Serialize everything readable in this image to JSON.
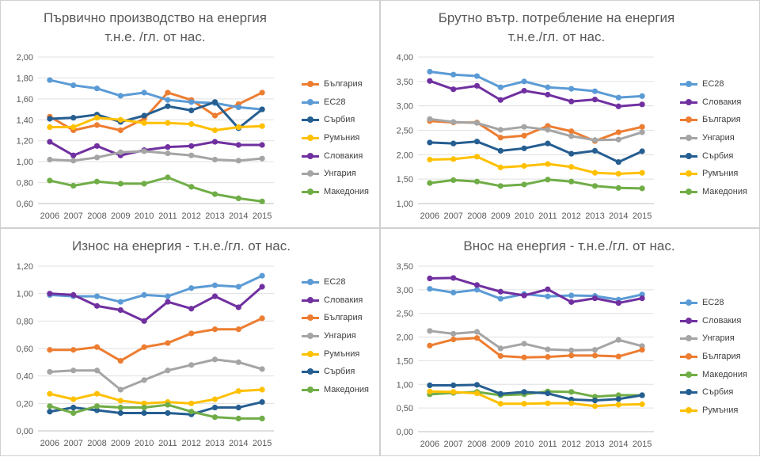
{
  "colors": {
    "EC28": "#5b9bd5",
    "Slovakia": "#7030a0",
    "Bulgaria": "#ed7d31",
    "Hungary": "#a5a5a5",
    "Romania": "#ffc000",
    "Serbia": "#255e91",
    "Macedonia": "#70ad47"
  },
  "chart_data": [
    {
      "type": "line",
      "title_line1": "Първично производство на енергия",
      "title_line2": "т.н.е. /гл. от нас.",
      "x": [
        "2006",
        "2007",
        "2008",
        "2009",
        "2010",
        "2011",
        "2012",
        "2013",
        "2014",
        "2015"
      ],
      "ylim": [
        0.6,
        2.0
      ],
      "yticks": [
        "0,60",
        "0,80",
        "1,00",
        "1,20",
        "1,40",
        "1,60",
        "1,80",
        "2,00"
      ],
      "grid": true,
      "legend_position": "right",
      "series": [
        {
          "name": "България",
          "color": "#ed7d31",
          "values": [
            1.43,
            1.3,
            1.35,
            1.3,
            1.41,
            1.66,
            1.59,
            1.44,
            1.55,
            1.66
          ]
        },
        {
          "name": "ЕС28",
          "color": "#5b9bd5",
          "values": [
            1.78,
            1.73,
            1.7,
            1.63,
            1.66,
            1.59,
            1.57,
            1.56,
            1.52,
            1.5
          ]
        },
        {
          "name": "Сърбия",
          "color": "#255e91",
          "values": [
            1.41,
            1.42,
            1.45,
            1.38,
            1.44,
            1.53,
            1.49,
            1.57,
            1.32,
            1.5
          ]
        },
        {
          "name": "Румъния",
          "color": "#ffc000",
          "values": [
            1.33,
            1.33,
            1.42,
            1.4,
            1.37,
            1.37,
            1.36,
            1.3,
            1.33,
            1.34
          ]
        },
        {
          "name": "Словакия",
          "color": "#7030a0",
          "values": [
            1.19,
            1.06,
            1.15,
            1.06,
            1.11,
            1.14,
            1.15,
            1.19,
            1.16,
            1.16
          ]
        },
        {
          "name": "Унгария",
          "color": "#a5a5a5",
          "values": [
            1.02,
            1.01,
            1.04,
            1.09,
            1.1,
            1.08,
            1.06,
            1.02,
            1.01,
            1.03
          ]
        },
        {
          "name": "Македония",
          "color": "#70ad47",
          "values": [
            0.82,
            0.77,
            0.81,
            0.79,
            0.79,
            0.85,
            0.76,
            0.69,
            0.65,
            0.62
          ]
        }
      ]
    },
    {
      "type": "line",
      "title_line1": "Брутно вътр. потребление на енергия",
      "title_line2": "т.н.е./гл. от нас.",
      "x": [
        "2006",
        "2007",
        "2008",
        "2009",
        "2010",
        "2011",
        "2012",
        "2013",
        "2014",
        "2015"
      ],
      "ylim": [
        1.0,
        4.0
      ],
      "yticks": [
        "1,00",
        "1,50",
        "2,00",
        "2,50",
        "3,00",
        "3,50",
        "4,00"
      ],
      "grid": true,
      "legend_position": "right",
      "series": [
        {
          "name": "ЕС28",
          "color": "#5b9bd5",
          "values": [
            3.7,
            3.64,
            3.61,
            3.38,
            3.5,
            3.38,
            3.35,
            3.3,
            3.17,
            3.2
          ]
        },
        {
          "name": "Словакия",
          "color": "#7030a0",
          "values": [
            3.51,
            3.34,
            3.41,
            3.12,
            3.31,
            3.23,
            3.09,
            3.13,
            2.99,
            3.03
          ]
        },
        {
          "name": "България",
          "color": "#ed7d31",
          "values": [
            2.69,
            2.66,
            2.66,
            2.35,
            2.39,
            2.59,
            2.48,
            2.28,
            2.46,
            2.57
          ]
        },
        {
          "name": "Унгария",
          "color": "#a5a5a5",
          "values": [
            2.73,
            2.67,
            2.65,
            2.51,
            2.57,
            2.51,
            2.38,
            2.3,
            2.31,
            2.46
          ]
        },
        {
          "name": "Сърбия",
          "color": "#255e91",
          "values": [
            2.25,
            2.23,
            2.27,
            2.08,
            2.13,
            2.23,
            2.02,
            2.08,
            1.85,
            2.07
          ]
        },
        {
          "name": "Румъния",
          "color": "#ffc000",
          "values": [
            1.9,
            1.91,
            1.96,
            1.74,
            1.77,
            1.81,
            1.75,
            1.63,
            1.61,
            1.63
          ]
        },
        {
          "name": "Македония",
          "color": "#70ad47",
          "values": [
            1.42,
            1.48,
            1.45,
            1.36,
            1.39,
            1.49,
            1.45,
            1.36,
            1.32,
            1.31
          ]
        }
      ]
    },
    {
      "type": "line",
      "title_line1": "Износ на енергия - т.н.е./гл. от нас.",
      "title_line2": "",
      "x": [
        "2006",
        "2007",
        "2008",
        "2009",
        "2010",
        "2011",
        "2012",
        "2013",
        "2014",
        "2015"
      ],
      "ylim": [
        0.0,
        1.2
      ],
      "yticks": [
        "0,00",
        "0,20",
        "0,40",
        "0,60",
        "0,80",
        "1,00",
        "1,20"
      ],
      "grid": true,
      "legend_position": "right",
      "series": [
        {
          "name": "ЕС28",
          "color": "#5b9bd5",
          "values": [
            0.99,
            0.98,
            0.98,
            0.94,
            0.99,
            0.98,
            1.04,
            1.06,
            1.05,
            1.13
          ]
        },
        {
          "name": "Словакия",
          "color": "#7030a0",
          "values": [
            1.0,
            0.99,
            0.91,
            0.88,
            0.8,
            0.94,
            0.89,
            0.98,
            0.9,
            1.05
          ]
        },
        {
          "name": "България",
          "color": "#ed7d31",
          "values": [
            0.59,
            0.59,
            0.61,
            0.51,
            0.61,
            0.64,
            0.71,
            0.74,
            0.74,
            0.82
          ]
        },
        {
          "name": "Унгария",
          "color": "#a5a5a5",
          "values": [
            0.43,
            0.44,
            0.44,
            0.3,
            0.37,
            0.44,
            0.48,
            0.52,
            0.5,
            0.45
          ]
        },
        {
          "name": "Румъния",
          "color": "#ffc000",
          "values": [
            0.27,
            0.23,
            0.27,
            0.22,
            0.2,
            0.21,
            0.2,
            0.23,
            0.29,
            0.3
          ]
        },
        {
          "name": "Сърбия",
          "color": "#255e91",
          "values": [
            0.14,
            0.17,
            0.15,
            0.13,
            0.13,
            0.13,
            0.12,
            0.17,
            0.17,
            0.21
          ]
        },
        {
          "name": "Македония",
          "color": "#70ad47",
          "values": [
            0.18,
            0.13,
            0.18,
            0.17,
            0.17,
            0.19,
            0.14,
            0.1,
            0.09,
            0.09
          ]
        }
      ]
    },
    {
      "type": "line",
      "title_line1": "Внос на енергия - т.н.е./гл. от нас.",
      "title_line2": "",
      "x": [
        "2006",
        "2007",
        "2008",
        "2009",
        "2010",
        "2011",
        "2012",
        "2013",
        "2014",
        "2015"
      ],
      "ylim": [
        0.0,
        3.5
      ],
      "yticks": [
        "0,00",
        "0,50",
        "1,00",
        "1,50",
        "2,00",
        "2,50",
        "3,00",
        "3,50"
      ],
      "grid": true,
      "legend_position": "right",
      "series": [
        {
          "name": "ЕС28",
          "color": "#5b9bd5",
          "values": [
            3.02,
            2.94,
            3.0,
            2.81,
            2.91,
            2.86,
            2.88,
            2.87,
            2.79,
            2.9
          ]
        },
        {
          "name": "Словакия",
          "color": "#7030a0",
          "values": [
            3.24,
            3.25,
            3.1,
            2.96,
            2.88,
            3.01,
            2.74,
            2.82,
            2.72,
            2.82
          ]
        },
        {
          "name": "Унгария",
          "color": "#a5a5a5",
          "values": [
            2.13,
            2.07,
            2.11,
            1.76,
            1.86,
            1.74,
            1.72,
            1.73,
            1.94,
            1.81
          ]
        },
        {
          "name": "България",
          "color": "#ed7d31",
          "values": [
            1.82,
            1.95,
            1.98,
            1.6,
            1.57,
            1.58,
            1.61,
            1.61,
            1.59,
            1.73
          ]
        },
        {
          "name": "Македония",
          "color": "#70ad47",
          "values": [
            0.79,
            0.82,
            0.84,
            0.77,
            0.79,
            0.85,
            0.84,
            0.74,
            0.77,
            0.77
          ]
        },
        {
          "name": "Сърбия",
          "color": "#255e91",
          "values": [
            0.98,
            0.98,
            0.99,
            0.8,
            0.84,
            0.81,
            0.68,
            0.66,
            0.69,
            0.77
          ]
        },
        {
          "name": "Румъния",
          "color": "#ffc000",
          "values": [
            0.85,
            0.84,
            0.81,
            0.59,
            0.59,
            0.6,
            0.6,
            0.54,
            0.57,
            0.58
          ]
        }
      ]
    }
  ]
}
